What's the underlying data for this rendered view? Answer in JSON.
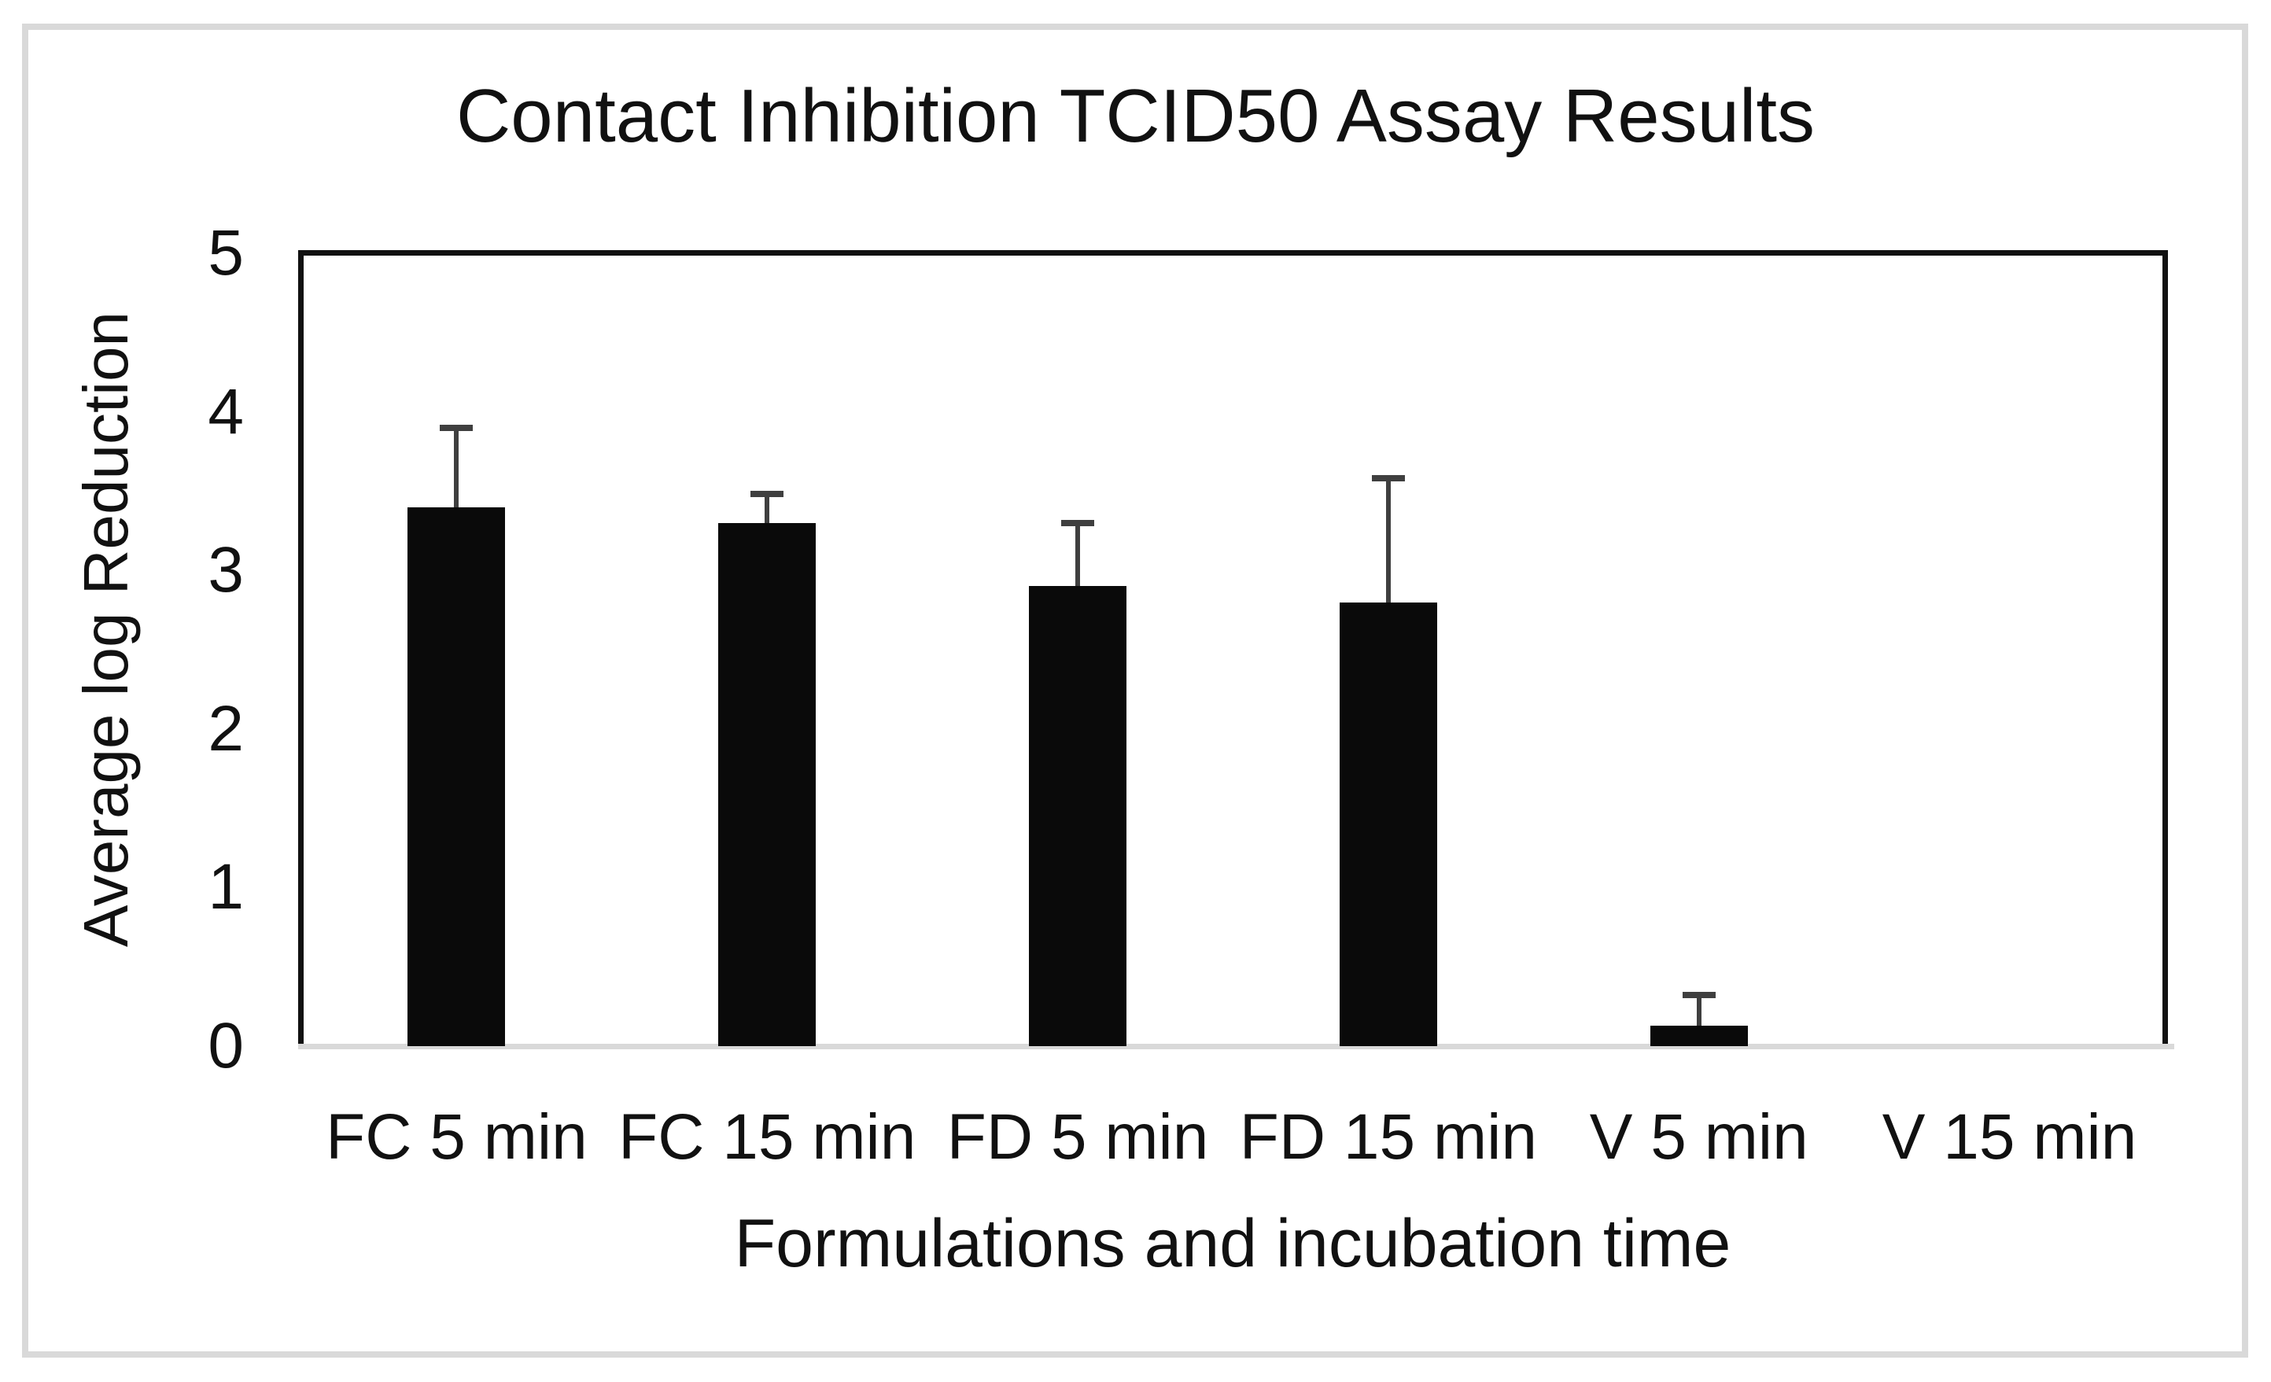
{
  "chart_data": {
    "type": "bar",
    "title": "Contact Inhibition TCID50 Assay Results",
    "xlabel": "Formulations and incubation time",
    "ylabel": "Average log Reduction",
    "categories": [
      "FC 5 min",
      "FC 15 min",
      "FD 5 min",
      "FD 15 min",
      "V 5 min",
      "V 15 min"
    ],
    "values": [
      3.4,
      3.3,
      2.9,
      2.8,
      0.13,
      0
    ],
    "errors_plus": [
      0.5,
      0.18,
      0.4,
      0.78,
      0.19,
      0
    ],
    "ylim": [
      0,
      5
    ],
    "yticks": [
      0,
      1,
      2,
      3,
      4,
      5
    ],
    "grid": "off",
    "legend": "none",
    "bar_color": "#0a0a0a",
    "error_bar_color": "#3f3f3f",
    "x_axis_line_color": "#d9d9d9",
    "plot_border_color": "#111111",
    "figure_border_color": "#d9d9d9",
    "background_color": "#ffffff"
  }
}
